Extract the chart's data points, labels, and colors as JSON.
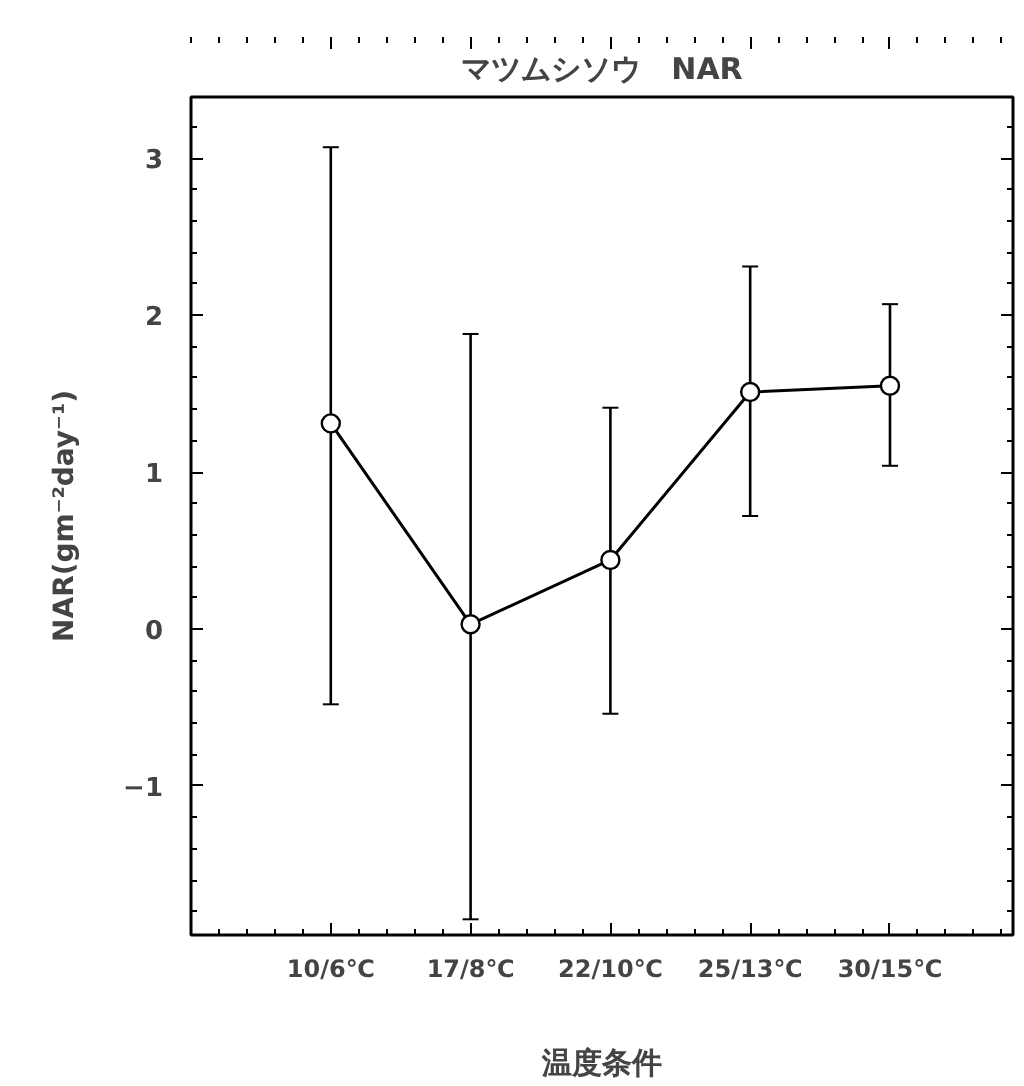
{
  "chart_data": {
    "type": "line",
    "title": "マツムシソウ　NAR",
    "xlabel": "温度条件",
    "ylabel": "NAR(gm⁻²day⁻¹)",
    "categories": [
      "10/6℃",
      "17/8℃",
      "22/10℃",
      "25/13℃",
      "30/15℃"
    ],
    "series": [
      {
        "color": "#000000",
        "values": [
          1.31,
          0.03,
          0.44,
          1.51,
          1.55
        ],
        "errors": [
          [
            -0.48,
            3.07
          ],
          [
            -1.85,
            1.88
          ],
          [
            -0.54,
            1.41
          ],
          [
            0.72,
            2.31
          ],
          [
            1.04,
            2.07
          ]
        ]
      }
    ],
    "ylim": [
      -1.95,
      3.39
    ],
    "yticks": [
      -1,
      0,
      1,
      2,
      3
    ],
    "grid": false,
    "marker": "circle",
    "line_style": "solid"
  }
}
